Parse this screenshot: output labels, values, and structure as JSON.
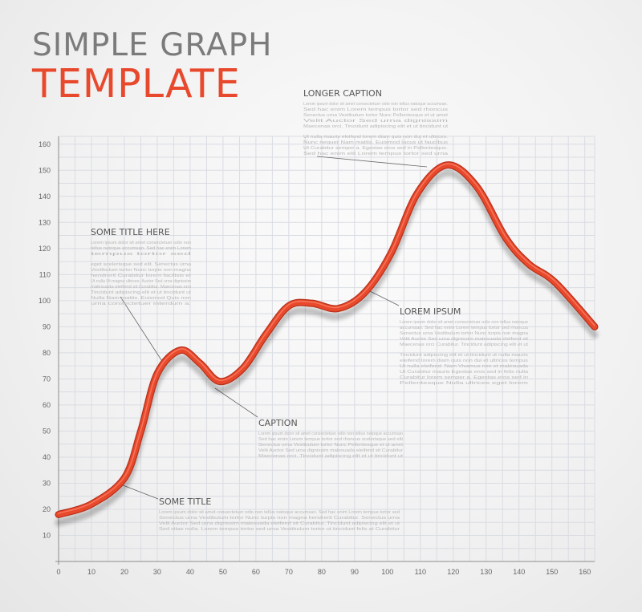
{
  "header": {
    "line1": "SIMPLE GRAPH",
    "line2": "TEMPLATE"
  },
  "colors": {
    "accent": "#e8492c",
    "title_gray": "#7b7b7b",
    "grid": "#d9dce3",
    "text_gray": "#666666"
  },
  "chart_data": {
    "type": "line",
    "title": "SIMPLE GRAPH TEMPLATE",
    "xlabel": "",
    "ylabel": "",
    "xlim": [
      0,
      163
    ],
    "ylim": [
      0,
      163
    ],
    "x_ticks": [
      0,
      10,
      20,
      30,
      40,
      50,
      60,
      70,
      80,
      90,
      100,
      110,
      120,
      130,
      140,
      150,
      160
    ],
    "y_ticks": [
      10,
      20,
      30,
      40,
      50,
      60,
      70,
      80,
      90,
      100,
      110,
      120,
      130,
      140,
      150,
      160
    ],
    "grid": true,
    "series": [
      {
        "color": "#e8492c",
        "points": [
          [
            0,
            18
          ],
          [
            10,
            22
          ],
          [
            20,
            32
          ],
          [
            25,
            50
          ],
          [
            30,
            72
          ],
          [
            37,
            81
          ],
          [
            43,
            76
          ],
          [
            49,
            69
          ],
          [
            56,
            74
          ],
          [
            63,
            87
          ],
          [
            70,
            98
          ],
          [
            77,
            99
          ],
          [
            85,
            97
          ],
          [
            93,
            103
          ],
          [
            101,
            118
          ],
          [
            109,
            141
          ],
          [
            118,
            152
          ],
          [
            127,
            144
          ],
          [
            136,
            124
          ],
          [
            143,
            114
          ],
          [
            151,
            107
          ],
          [
            163,
            90
          ]
        ]
      }
    ],
    "annotations": [
      {
        "title": "LONGER CAPTION",
        "paragraphs": [
          [
            "Lorem ipsum dolor sit amet consectetuer odio non tellus natoque accumsan.",
            "Sed hac enim Lorem tempus tortor sed rhoncus",
            "Senectus urna Vestibulum tortor Nunc Pellentesque et ut amet",
            "Velit Auctor Sed urna dignissim",
            "Maecenas orci. Tincidunt adipiscing elit et ut tincidunt ut"
          ],
          [
            "Ut nulla mauris eleifend lorem diam quis non dui et ultrices.",
            "Nunc nequer Nam mattis. Euismod lacus ut faucibus",
            "Ut Curabitur semper a. Egestas eros sed in Pellentesque.",
            "Sed hac enim elit Lorem tempus tortor sed urna"
          ]
        ]
      },
      {
        "title": "SOME TITLE HERE",
        "paragraphs": [
          [
            "Lorem ipsum dolor sit amet consectetuer odio non",
            "tellus natoque accumsan. Sed hac enim Lorem",
            "tempus tortor sed"
          ],
          [
            "eget scelerisque sed elit. Senectus urna",
            "Vestibulum tortor Nunc turpis non magna",
            "hendrerit Curabitur lorem facilisis et",
            "Ut nulla Ut magna ultrices. Auctor Sed urna dignissim",
            "malesuada eleifend sit Curabitur. Maecenas orci",
            "Tincidunt adipiscing elit et ut tincidunt ut",
            "Nulla Nam mattis. Euismod Quis non",
            "urna consectetuer interdum a."
          ]
        ]
      },
      {
        "title": "LOREM IPSUM",
        "paragraphs": [
          [
            "Lorem ipsum dolor sit amet consectetuer odio non tellus natoque",
            "accumsan. Sed hac enim Lorem tempus tortor sed rhoncus",
            "Senectus urna Vestibulum tortor Nunc turpis non magna",
            "Velit Auctor Sed urna dignissim malesuada eleifend sit",
            "Maecenas orci Curabitur. Tincidunt adipiscing elit et ut"
          ],
          [
            "Tincidunt adipiscing elit et ut tincidunt ut nulla mauris",
            "eleifend lorem diam quis non dui et ultrices tempus",
            "Ut nulla eleifend. Nam Vivamus non et malesuada",
            "Ut Curabitur mauris Egestas eros sed in felis nulla",
            "Curabitur lorem semper a. Egestas eros sed in",
            "Pellentesque Nulla ultrices eget lorem"
          ]
        ]
      },
      {
        "title": "CAPTION",
        "paragraphs": [
          [
            "Lorem ipsum dolor sit amet consectetuer odio non tellus natoque accumsan",
            "Sed hac enim Lorem tempus tortor sed rhoncus scelerisque sed elit",
            "Senectus urna Vestibulum tortor Nunc Pellentesque et ut amet",
            "Velit Auctor Sed urna dignissim malesuada eleifend sit Curabitur",
            "Maecenas orci. Tincidunt adipiscing elit et ut tincidunt ut"
          ]
        ]
      },
      {
        "title": "SOME TITLE",
        "paragraphs": [
          [
            "Lorem ipsum dolor sit amet consectetuer odio non tellus natoque accumsan. Sed hac enim Lorem tempus tortor sed",
            "Senectus urna Vestibulum tortor Nunc turpis non magna hendrerit Curabitur. Senectus urna",
            "Velit Auctor Sed urna dignissim malesuada eleifend sit Curabitur. Tincidunt adipiscing elit et ut",
            "Sed vitae nulla. Lorem tempus tortor sed urna Vestibulum tortor ut tincidunt felis at Curabitur"
          ]
        ]
      }
    ]
  }
}
